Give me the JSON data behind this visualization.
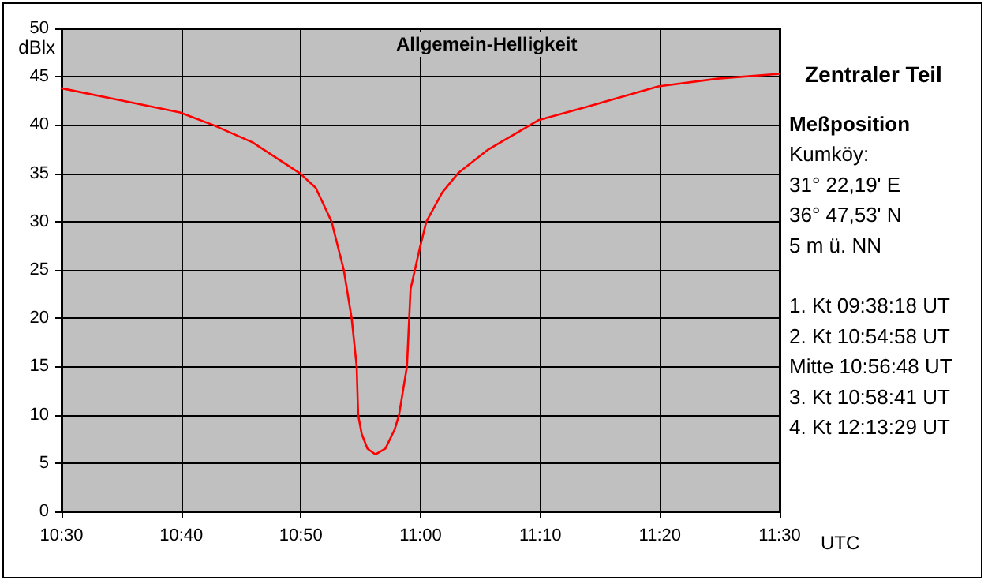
{
  "chart_data": {
    "type": "line",
    "title": "Allgemein-Helligkeit",
    "ylabel": "dBlx",
    "xlabel": "UTC",
    "annotations": [
      "Meßposition\nKumköy:\n31° 22,19' E\n36° 47,53' N\n5 m ü. NN",
      "1. Kt 09:38:18 UT\n2. Kt 10:54:58 UT\nMitte 10:56:48 UT\n3. Kt 10:58:41 UT\n4. Kt 12:13:29 UT"
    ],
    "x": [
      10.5,
      10.579,
      10.665,
      10.711,
      10.766,
      10.832,
      10.854,
      10.876,
      10.893,
      10.904,
      10.911,
      10.913,
      10.918,
      10.926,
      10.937,
      10.951,
      10.964,
      10.97,
      10.981,
      10.986,
      10.999,
      11.008,
      11.03,
      11.052,
      11.093,
      11.164,
      11.228,
      11.331,
      11.414,
      11.5
    ],
    "series": [
      {
        "name": "Zentraler Teil",
        "color": "#ff0000",
        "values": [
          43.8,
          42.6,
          41.3,
          40,
          38.2,
          35,
          33.5,
          30,
          25,
          20,
          15,
          10,
          8,
          6.5,
          5.9,
          6.5,
          8.5,
          10,
          15,
          23,
          27.3,
          30,
          33,
          35,
          37.4,
          40.5,
          41.8,
          44,
          44.8,
          45.3
        ]
      }
    ],
    "xlim": [
      10.5,
      11.5
    ],
    "xticks": [
      {
        "value": 10.5,
        "label": "10:30"
      },
      {
        "value": 10.6667,
        "label": "10:40"
      },
      {
        "value": 10.8333,
        "label": "10:50"
      },
      {
        "value": 11,
        "label": "11:00"
      },
      {
        "value": 11.1667,
        "label": "11:10"
      },
      {
        "value": 11.3333,
        "label": "11:20"
      },
      {
        "value": 11.5,
        "label": "11:30"
      }
    ],
    "ylim": [
      0,
      50
    ],
    "yticks": [
      0,
      5,
      10,
      15,
      20,
      25,
      30,
      35,
      40,
      45,
      50
    ],
    "grid": true,
    "legend": false,
    "marker": "none",
    "line_style": "solid"
  }
}
